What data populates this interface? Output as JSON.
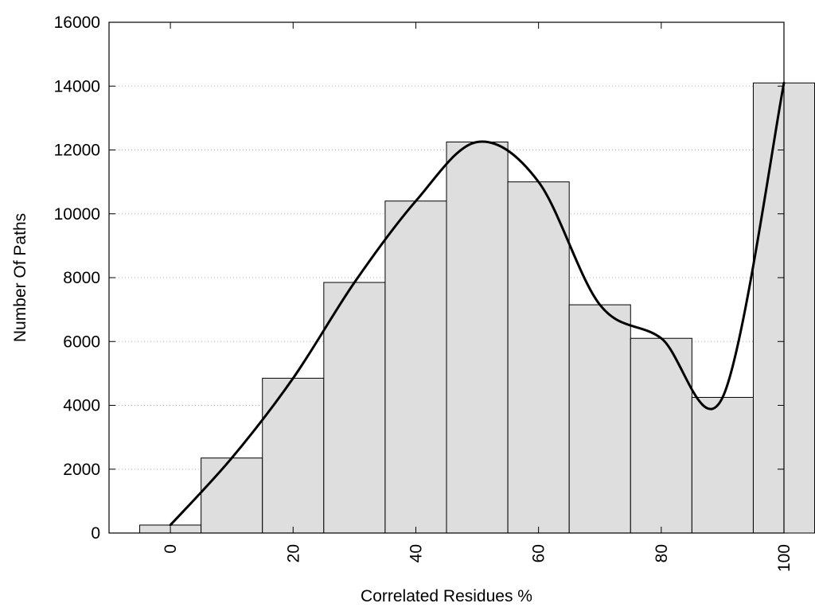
{
  "chart_data": {
    "type": "bar",
    "title": "",
    "xlabel": "Correlated Residues %",
    "ylabel": "Number Of Paths",
    "bin_centers": [
      0,
      10,
      20,
      30,
      40,
      50,
      60,
      70,
      80,
      90,
      100
    ],
    "values": [
      250,
      2350,
      4850,
      7850,
      10400,
      12250,
      11000,
      7150,
      6100,
      4250,
      14100
    ],
    "smooth_curve": {
      "x": [
        0,
        10,
        20,
        30,
        40,
        50,
        60,
        70,
        80,
        90,
        100
      ],
      "y": [
        250,
        2350,
        4850,
        7850,
        10400,
        12250,
        11000,
        7150,
        6100,
        4250,
        14100
      ]
    },
    "xlim": [
      -10,
      100
    ],
    "ylim": [
      0,
      16000
    ],
    "x_ticks": [
      0,
      20,
      40,
      60,
      80,
      100
    ],
    "y_ticks": [
      0,
      2000,
      4000,
      6000,
      8000,
      10000,
      12000,
      14000,
      16000
    ],
    "x_tick_labels": [
      "0",
      "20",
      "40",
      "60",
      "80",
      "100"
    ],
    "y_tick_labels": [
      "0",
      "2000",
      "4000",
      "6000",
      "8000",
      "10000",
      "12000",
      "14000",
      "16000"
    ],
    "grid": "horizontal dotted",
    "legend": "none",
    "colors": {
      "bar_fill": "#dedede",
      "bar_stroke": "#000000",
      "curve": "#000000",
      "grid": "#b0b0b0"
    }
  }
}
